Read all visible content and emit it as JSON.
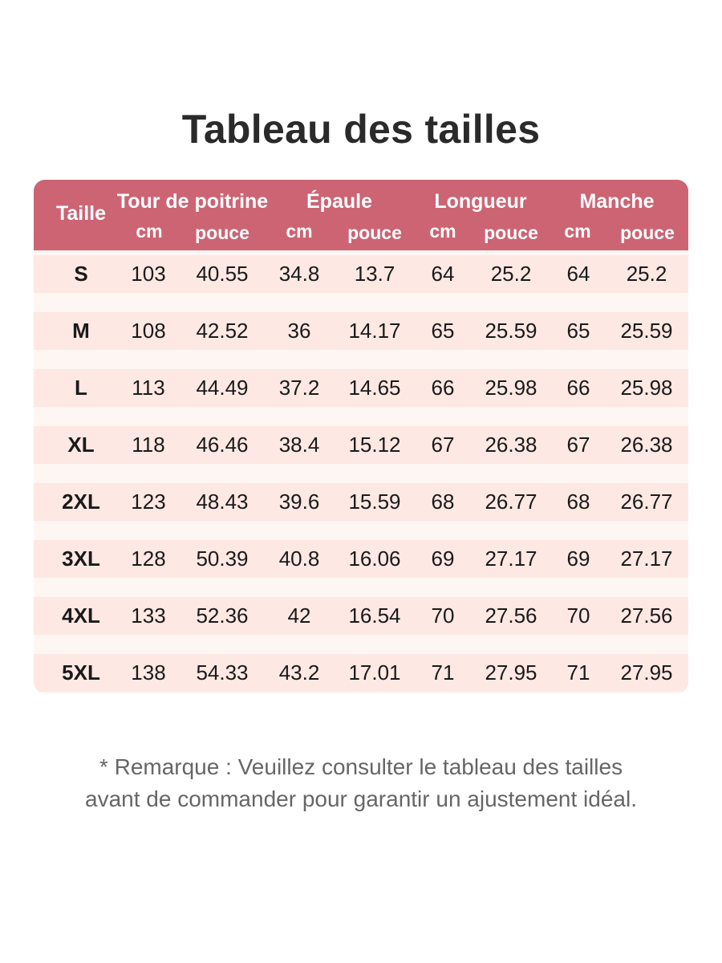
{
  "title": "Tableau des tailles",
  "colors": {
    "header_bg": "#cc6474",
    "row_bg": "#fde8e3",
    "stripe_bg": "#fdf6f3"
  },
  "table": {
    "first_header": "Taille",
    "groups": [
      "Tour de poitrine",
      "Épaule",
      "Longueur",
      "Manche"
    ],
    "units": [
      "cm",
      "pouce",
      "cm",
      "pouce",
      "cm",
      "pouce",
      "cm",
      "pouce"
    ],
    "rows": [
      [
        "S",
        "103",
        "40.55",
        "34.8",
        "13.7",
        "64",
        "25.2",
        "64",
        "25.2"
      ],
      [
        "M",
        "108",
        "42.52",
        "36",
        "14.17",
        "65",
        "25.59",
        "65",
        "25.59"
      ],
      [
        "L",
        "113",
        "44.49",
        "37.2",
        "14.65",
        "66",
        "25.98",
        "66",
        "25.98"
      ],
      [
        "XL",
        "118",
        "46.46",
        "38.4",
        "15.12",
        "67",
        "26.38",
        "67",
        "26.38"
      ],
      [
        "2XL",
        "123",
        "48.43",
        "39.6",
        "15.59",
        "68",
        "26.77",
        "68",
        "26.77"
      ],
      [
        "3XL",
        "128",
        "50.39",
        "40.8",
        "16.06",
        "69",
        "27.17",
        "69",
        "27.17"
      ],
      [
        "4XL",
        "133",
        "52.36",
        "42",
        "16.54",
        "70",
        "27.56",
        "70",
        "27.56"
      ],
      [
        "5XL",
        "138",
        "54.33",
        "43.2",
        "17.01",
        "71",
        "27.95",
        "71",
        "27.95"
      ]
    ]
  },
  "note": {
    "line1": "* Remarque : Veuillez consulter le tableau des tailles",
    "line2": "avant de commander pour garantir un ajustement idéal."
  }
}
